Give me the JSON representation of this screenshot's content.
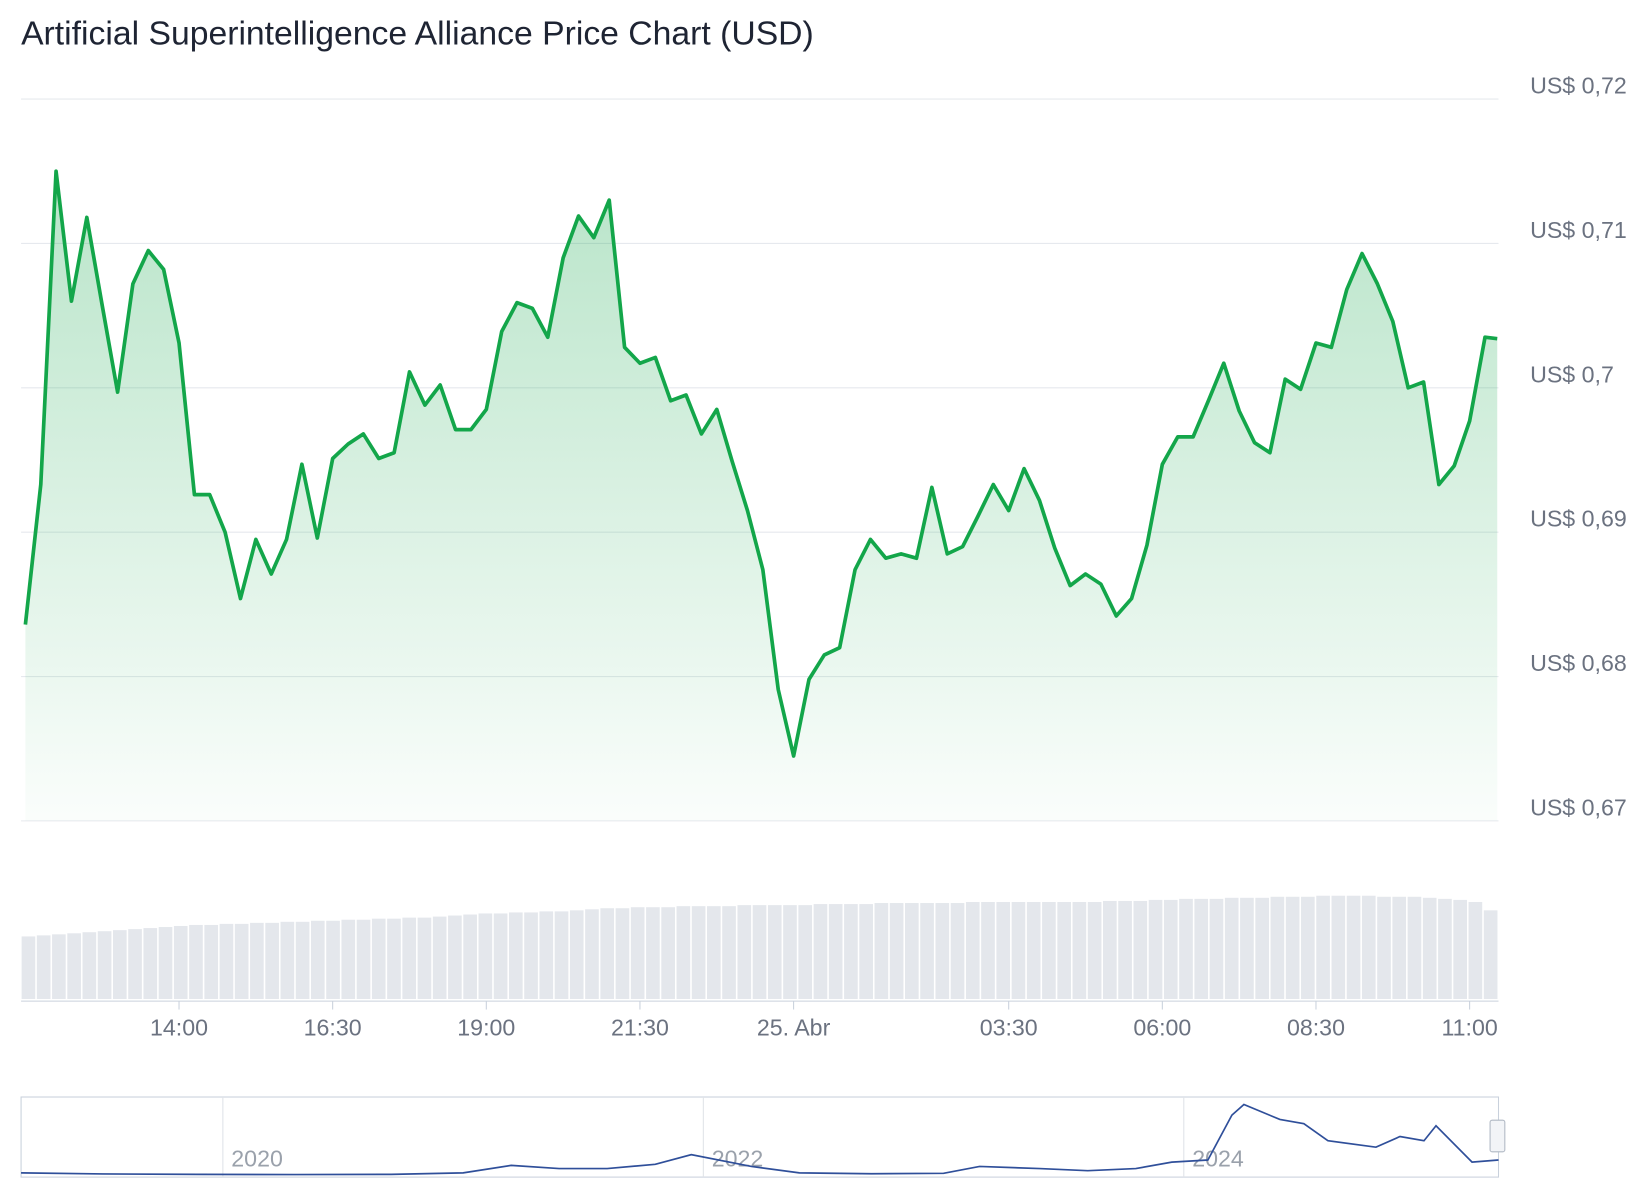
{
  "chart_data": [
    {
      "type": "area",
      "title": "Artificial Superintelligence Alliance Price Chart (USD)",
      "color": "#13a64a",
      "x": [
        11.5,
        11.75,
        12,
        12.25,
        12.5,
        12.75,
        13,
        13.25,
        13.5,
        13.75,
        14,
        14.25,
        14.5,
        14.75,
        15,
        15.25,
        15.5,
        15.75,
        16,
        16.25,
        16.5,
        16.75,
        17,
        17.25,
        17.5,
        17.75,
        18,
        18.25,
        18.5,
        18.75,
        19,
        19.25,
        19.5,
        19.75,
        20,
        20.25,
        20.5,
        20.75,
        21,
        21.25,
        21.5,
        21.75,
        22,
        22.25,
        22.5,
        22.75,
        23,
        23.25,
        23.5,
        23.75,
        24,
        24.25,
        24.5,
        24.75,
        25,
        25.25,
        25.5,
        25.75,
        26,
        26.25,
        26.5,
        26.75,
        27,
        27.25,
        27.5,
        27.75,
        28,
        28.25,
        28.5,
        28.75,
        29,
        29.25,
        29.5,
        29.75,
        30,
        30.25,
        30.5,
        30.75,
        31,
        31.25,
        31.5,
        31.75,
        32,
        32.25,
        32.5,
        32.75,
        33,
        33.25,
        33.5,
        33.75,
        34,
        34.25,
        34.5,
        34.75,
        35,
        35.25,
        35.45
      ],
      "values": [
        0.6836,
        0.6933,
        0.715,
        0.706,
        0.7118,
        0.7057,
        0.6997,
        0.7072,
        0.7095,
        0.7082,
        0.7031,
        0.6926,
        0.6926,
        0.69,
        0.6854,
        0.6895,
        0.6871,
        0.6895,
        0.6947,
        0.6896,
        0.6951,
        0.6961,
        0.6968,
        0.6951,
        0.6955,
        0.7011,
        0.6988,
        0.7002,
        0.6971,
        0.6971,
        0.6985,
        0.7039,
        0.7059,
        0.7055,
        0.7035,
        0.709,
        0.7119,
        0.7104,
        0.713,
        0.7028,
        0.7017,
        0.7021,
        0.6991,
        0.6995,
        0.6968,
        0.6985,
        0.6949,
        0.6915,
        0.6874,
        0.6791,
        0.6745,
        0.6798,
        0.6815,
        0.682,
        0.6874,
        0.6895,
        0.6882,
        0.6885,
        0.6882,
        0.6931,
        0.6885,
        0.689,
        0.6911,
        0.6933,
        0.6915,
        0.6944,
        0.6922,
        0.6889,
        0.6863,
        0.6871,
        0.6864,
        0.6842,
        0.6854,
        0.6891,
        0.6947,
        0.6966,
        0.6966,
        0.6991,
        0.7017,
        0.6984,
        0.6962,
        0.6955,
        0.7006,
        0.6999,
        0.7031,
        0.7028,
        0.7068,
        0.7093,
        0.7072,
        0.7046,
        0.7,
        0.7004,
        0.6933,
        0.6946,
        0.6977,
        0.7035,
        0.7034
      ],
      "volume": [
        60,
        61,
        62,
        63,
        64,
        65,
        66,
        67,
        68,
        69,
        70,
        71,
        71,
        72,
        72,
        73,
        73,
        74,
        74,
        75,
        75,
        76,
        76,
        77,
        77,
        78,
        78,
        79,
        80,
        81,
        82,
        82,
        83,
        83,
        84,
        84,
        85,
        86,
        87,
        87,
        88,
        88,
        88,
        89,
        89,
        89,
        89,
        90,
        90,
        90,
        90,
        90,
        91,
        91,
        91,
        91,
        92,
        92,
        92,
        92,
        92,
        92,
        93,
        93,
        93,
        93,
        93,
        93,
        93,
        93,
        93,
        94,
        94,
        94,
        95,
        95,
        96,
        96,
        96,
        97,
        97,
        97,
        98,
        98,
        98,
        99,
        99,
        99,
        99,
        98,
        98,
        98,
        97,
        96,
        95,
        93,
        85
      ],
      "xlim": [
        11.43,
        35.47
      ],
      "ylim": [
        0.67,
        0.72
      ],
      "xticks": [
        {
          "value": 14,
          "label": "14:00"
        },
        {
          "value": 16.5,
          "label": "16:30"
        },
        {
          "value": 19,
          "label": "19:00"
        },
        {
          "value": 21.5,
          "label": "21:30"
        },
        {
          "value": 24,
          "label": "25. Abr"
        },
        {
          "value": 27.5,
          "label": "03:30"
        },
        {
          "value": 30,
          "label": "06:00"
        },
        {
          "value": 32.5,
          "label": "08:30"
        },
        {
          "value": 35,
          "label": "11:00"
        }
      ],
      "yticks": [
        {
          "value": 0.67,
          "label": "US$ 0,67"
        },
        {
          "value": 0.68,
          "label": "US$ 0,68"
        },
        {
          "value": 0.69,
          "label": "US$ 0,69"
        },
        {
          "value": 0.7,
          "label": "US$ 0,7"
        },
        {
          "value": 0.71,
          "label": "US$ 0,71"
        },
        {
          "value": 0.72,
          "label": "US$ 0,72"
        }
      ],
      "grid": true
    },
    {
      "type": "line",
      "color": "#2f4f9a",
      "x": [
        2019.16,
        2019.5,
        2019.9,
        2020.3,
        2020.7,
        2021.0,
        2021.2,
        2021.4,
        2021.6,
        2021.8,
        2021.95,
        2022.2,
        2022.4,
        2022.7,
        2023.0,
        2023.15,
        2023.4,
        2023.6,
        2023.8,
        2023.95,
        2024.1,
        2024.2,
        2024.25,
        2024.4,
        2024.5,
        2024.6,
        2024.8,
        2024.9,
        2025.0,
        2025.05,
        2025.2,
        2025.31
      ],
      "values": [
        0.1,
        0.05,
        0.03,
        0.02,
        0.03,
        0.1,
        0.45,
        0.3,
        0.3,
        0.5,
        0.95,
        0.4,
        0.1,
        0.06,
        0.08,
        0.4,
        0.3,
        0.2,
        0.3,
        0.6,
        0.7,
        2.8,
        3.3,
        2.6,
        2.4,
        1.6,
        1.3,
        1.8,
        1.6,
        2.3,
        0.6,
        0.7
      ],
      "xlim": [
        2019.16,
        2025.31
      ],
      "ylim": [
        0,
        3.5
      ],
      "xticks": [
        2020,
        2022,
        2024
      ]
    }
  ]
}
